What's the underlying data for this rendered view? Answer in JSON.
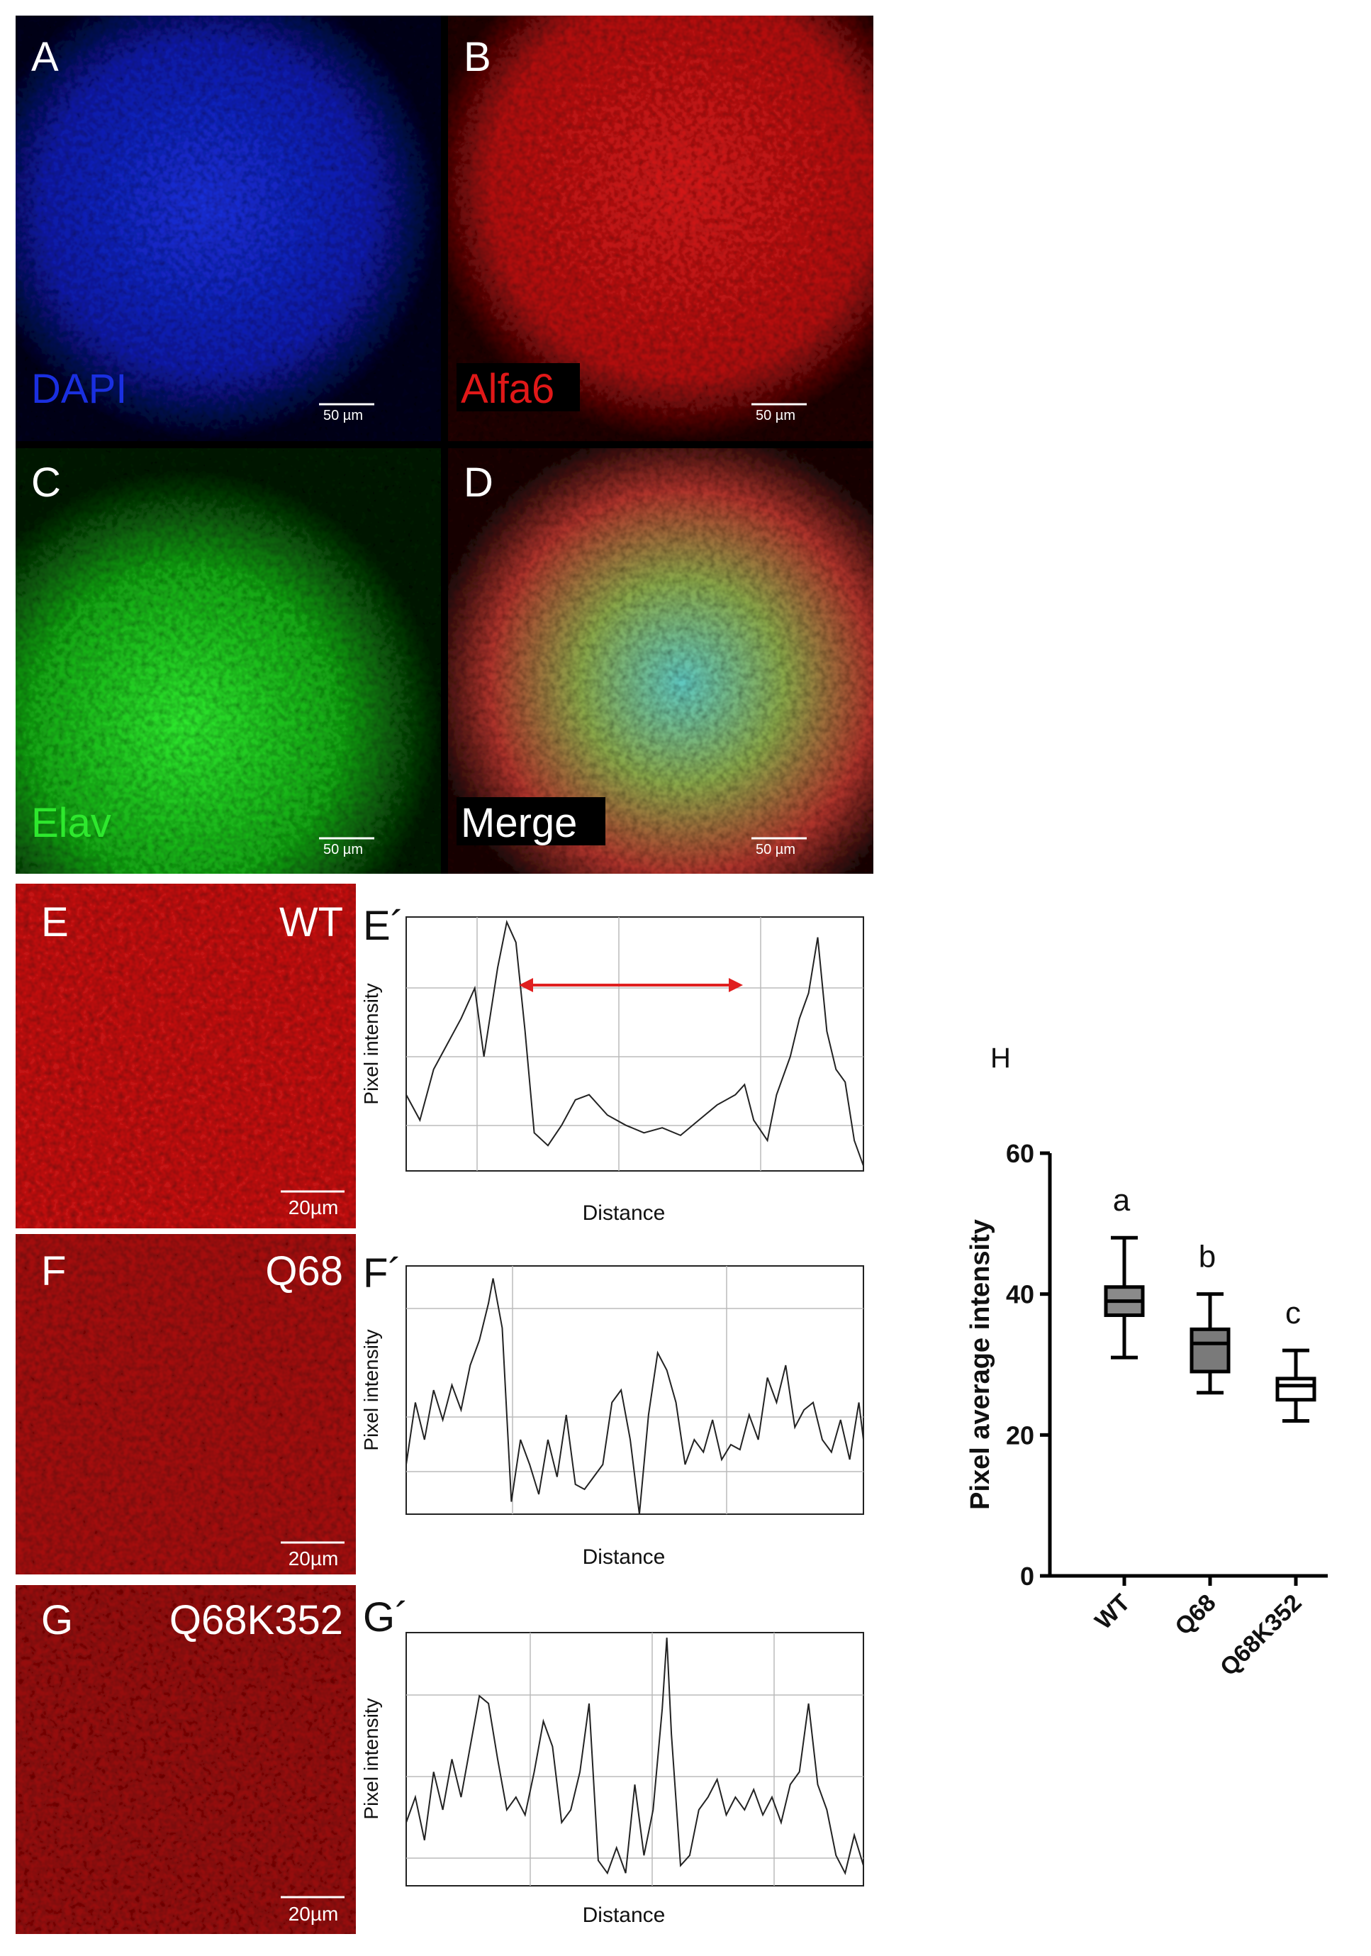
{
  "panels": {
    "A": {
      "letter": "A",
      "label": "DAPI",
      "scale": "50 µm"
    },
    "B": {
      "letter": "B",
      "label": "Alfa6",
      "scale": "50 µm"
    },
    "C": {
      "letter": "C",
      "label": "Elav",
      "scale": "50 µm"
    },
    "D": {
      "letter": "D",
      "label": "Merge",
      "scale": "50 µm"
    },
    "E": {
      "letter": "E",
      "label": "WT",
      "scale": "20µm"
    },
    "F": {
      "letter": "F",
      "label": "Q68",
      "scale": "20µm"
    },
    "G": {
      "letter": "G",
      "label": "Q68K352",
      "scale": "20µm"
    },
    "E_profile": {
      "letter": "E´",
      "ylabel": "Pixel intensity",
      "xlabel": "Distance"
    },
    "F_profile": {
      "letter": "F´",
      "ylabel": "Pixel intensity",
      "xlabel": "Distance"
    },
    "G_profile": {
      "letter": "G´",
      "ylabel": "Pixel intensity",
      "xlabel": "Distance"
    }
  },
  "chart_data": {
    "type": "box",
    "panel": "H",
    "ylabel": "Pixel average intensity",
    "categories": [
      "WT",
      "Q68",
      "Q68K352"
    ],
    "boxes": [
      {
        "min": 31,
        "q1": 37,
        "median": 39,
        "q3": 41,
        "max": 48
      },
      {
        "min": 26,
        "q1": 29,
        "median": 33,
        "q3": 35,
        "max": 40
      },
      {
        "min": 22,
        "q1": 25,
        "median": 27,
        "q3": 28,
        "max": 32
      }
    ],
    "colors": [
      "#8a8a8a",
      "#7a7a7a",
      "#ffffff"
    ],
    "annotations": [
      "a",
      "b",
      "c"
    ],
    "ylim": [
      0,
      60
    ],
    "yticks": [
      0,
      20,
      40,
      60
    ]
  }
}
